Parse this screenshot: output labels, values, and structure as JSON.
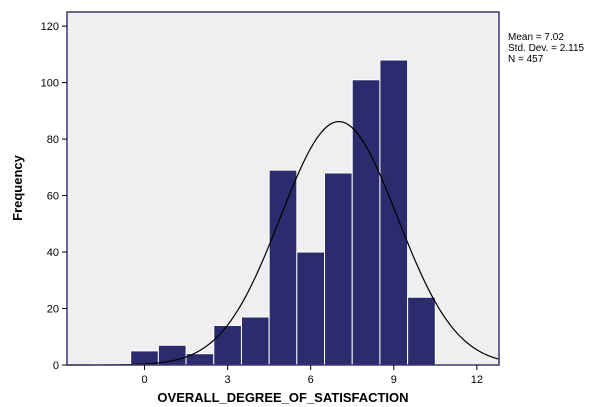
{
  "chart_data": {
    "type": "bar",
    "title": "",
    "xlabel": "OVERALL_DEGREE_OF_SATISFACTION",
    "ylabel": "Frequency",
    "bin_width": 1,
    "bins": [
      {
        "start": -0.5,
        "end": 0.5,
        "value": 5
      },
      {
        "start": 0.5,
        "end": 1.5,
        "value": 7
      },
      {
        "start": 1.5,
        "end": 2.5,
        "value": 4
      },
      {
        "start": 2.5,
        "end": 3.5,
        "value": 14
      },
      {
        "start": 3.5,
        "end": 4.5,
        "value": 17
      },
      {
        "start": 4.5,
        "end": 5.5,
        "value": 69
      },
      {
        "start": 5.5,
        "end": 6.5,
        "value": 40
      },
      {
        "start": 6.5,
        "end": 7.5,
        "value": 68
      },
      {
        "start": 7.5,
        "end": 8.5,
        "value": 101
      },
      {
        "start": 8.5,
        "end": 9.5,
        "value": 108
      },
      {
        "start": 9.5,
        "end": 10.5,
        "value": 24
      }
    ],
    "xlim": [
      -2.8,
      12.8
    ],
    "ylim": [
      0,
      125
    ],
    "x_ticks": [
      0,
      3,
      6,
      9,
      12
    ],
    "y_ticks": [
      0,
      20,
      40,
      60,
      80,
      100,
      120
    ],
    "normal_curve": {
      "mean": 7.02,
      "std": 2.115,
      "n": 457
    },
    "stats": {
      "mean_label": "Mean = 7.02",
      "std_label": "Std. Dev. = 2.115",
      "n_label": "N = 457"
    },
    "colors": {
      "plot_background": "#efefef",
      "bar_fill": "#2b2b6e",
      "bar_stroke": "#ffffff",
      "frame": "#3a3a6e",
      "curve": "#000000"
    }
  }
}
